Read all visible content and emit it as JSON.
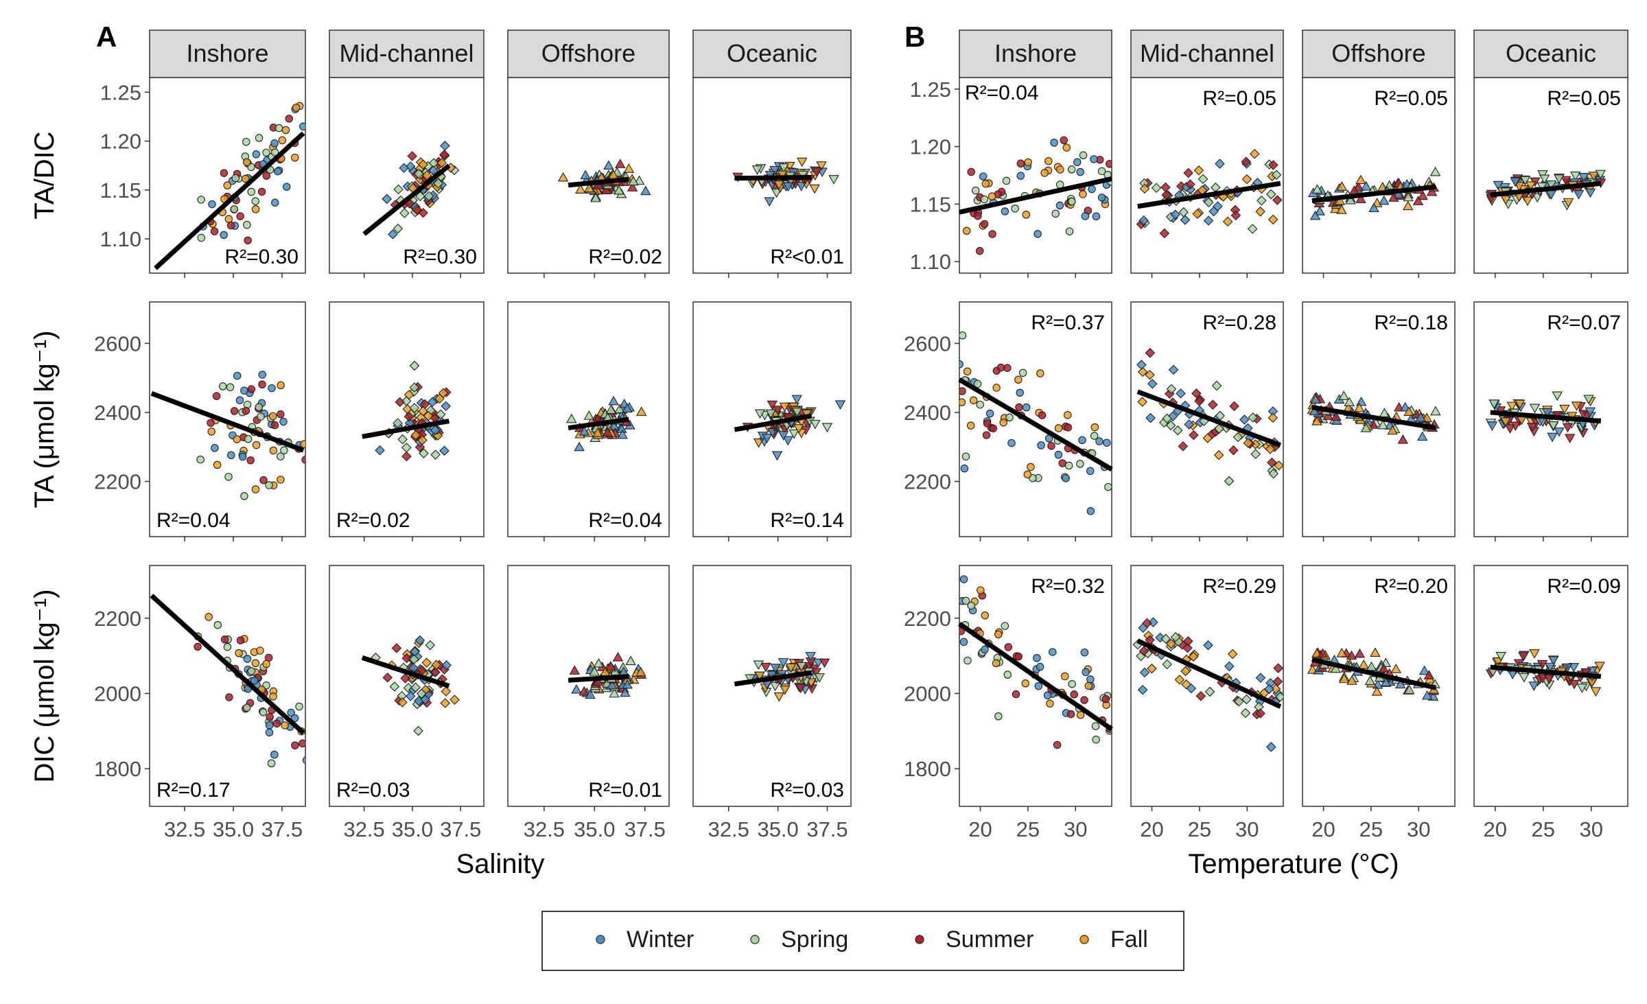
{
  "figure": {
    "panel_labels": [
      "A",
      "B"
    ],
    "legend": {
      "items": [
        {
          "label": "Winter",
          "color": "#4a90c8"
        },
        {
          "label": "Spring",
          "color": "#a9d6a4"
        },
        {
          "label": "Summer",
          "color": "#b3202a"
        },
        {
          "label": "Fall",
          "color": "#f0a020"
        }
      ]
    },
    "shapes_by_region": {
      "Inshore": "circle",
      "Mid-channel": "diamond",
      "Offshore": "triangle-up",
      "Oceanic": "triangle-down"
    }
  },
  "chart_data": [
    {
      "type": "scatter",
      "panel": "A",
      "xlabel": "Salinity",
      "facet_columns": [
        "Inshore",
        "Mid-channel",
        "Offshore",
        "Oceanic"
      ],
      "x_ticks": [
        "32.5",
        "35.0",
        "37.5"
      ],
      "xlim": [
        30.7,
        38.7
      ],
      "rows": [
        {
          "ylabel": "TA/DIC",
          "y_ticks": [
            "1.10",
            "1.15",
            "1.20",
            "1.25"
          ],
          "ylim": [
            1.065,
            1.265
          ]
        },
        {
          "ylabel": "TA (μmol kg⁻¹)",
          "y_ticks": [
            "2200",
            "2400",
            "2600"
          ],
          "ylim": [
            2040,
            2720
          ]
        },
        {
          "ylabel": "DIC (μmol kg⁻¹)",
          "y_ticks": [
            "1800",
            "2000",
            "2200"
          ],
          "ylim": [
            1700,
            2340
          ]
        }
      ],
      "facets": [
        {
          "row": 0,
          "col": "Inshore",
          "r2": "R²=0.30",
          "r2_pos": "bottom-right",
          "fit": [
            [
              31,
              1.07
            ],
            [
              38.6,
              1.208
            ]
          ]
        },
        {
          "row": 0,
          "col": "Mid-channel",
          "r2": "R²=0.30",
          "r2_pos": "bottom-right",
          "fit": [
            [
              32.5,
              1.105
            ],
            [
              36.9,
              1.175
            ]
          ]
        },
        {
          "row": 0,
          "col": "Offshore",
          "r2": "R²=0.02",
          "r2_pos": "bottom-right",
          "fit": [
            [
              33.7,
              1.155
            ],
            [
              36.7,
              1.161
            ]
          ]
        },
        {
          "row": 0,
          "col": "Oceanic",
          "r2": "R²<0.01",
          "r2_pos": "bottom-right",
          "fit": [
            [
              32.8,
              1.162
            ],
            [
              36.7,
              1.163
            ]
          ]
        },
        {
          "row": 1,
          "col": "Inshore",
          "r2": "R²=0.04",
          "r2_pos": "bottom-left",
          "fit": [
            [
              30.8,
              2455
            ],
            [
              38.6,
              2290
            ]
          ]
        },
        {
          "row": 1,
          "col": "Mid-channel",
          "r2": "R²=0.02",
          "r2_pos": "bottom-left",
          "fit": [
            [
              32.4,
              2330
            ],
            [
              36.9,
              2375
            ]
          ]
        },
        {
          "row": 1,
          "col": "Offshore",
          "r2": "R²=0.04",
          "r2_pos": "bottom-right",
          "fit": [
            [
              33.7,
              2355
            ],
            [
              36.7,
              2380
            ]
          ]
        },
        {
          "row": 1,
          "col": "Oceanic",
          "r2": "R²=0.14",
          "r2_pos": "bottom-right",
          "fit": [
            [
              32.8,
              2350
            ],
            [
              36.7,
              2390
            ]
          ]
        },
        {
          "row": 2,
          "col": "Inshore",
          "r2": "R²=0.17",
          "r2_pos": "bottom-left",
          "fit": [
            [
              30.8,
              2260
            ],
            [
              38.6,
              1895
            ]
          ]
        },
        {
          "row": 2,
          "col": "Mid-channel",
          "r2": "R²=0.03",
          "r2_pos": "bottom-left",
          "fit": [
            [
              32.4,
              2095
            ],
            [
              36.9,
              2020
            ]
          ]
        },
        {
          "row": 2,
          "col": "Offshore",
          "r2": "R²=0.01",
          "r2_pos": "bottom-right",
          "fit": [
            [
              33.7,
              2035
            ],
            [
              36.7,
              2045
            ]
          ]
        },
        {
          "row": 2,
          "col": "Oceanic",
          "r2": "R²=0.03",
          "r2_pos": "bottom-right",
          "fit": [
            [
              32.8,
              2025
            ],
            [
              36.7,
              2055
            ]
          ]
        }
      ]
    },
    {
      "type": "scatter",
      "panel": "B",
      "xlabel": "Temperature (°C)",
      "facet_columns": [
        "Inshore",
        "Mid-channel",
        "Offshore",
        "Oceanic"
      ],
      "x_ticks": [
        "20",
        "25",
        "30"
      ],
      "xlim": [
        17.8,
        33.8
      ],
      "rows": [
        {
          "ylabel": "TA/DIC",
          "y_ticks": [
            "1.10",
            "1.15",
            "1.20",
            "1.25"
          ],
          "ylim": [
            1.09,
            1.26
          ]
        },
        {
          "ylabel": "TA (μmol kg⁻¹)",
          "y_ticks": [
            "2200",
            "2400",
            "2600"
          ],
          "ylim": [
            2040,
            2720
          ]
        },
        {
          "ylabel": "DIC (μmol kg⁻¹)",
          "y_ticks": [
            "1800",
            "2000",
            "2200"
          ],
          "ylim": [
            1700,
            2340
          ]
        }
      ],
      "facets": [
        {
          "row": 0,
          "col": "Inshore",
          "r2": "R²=0.04",
          "r2_pos": "top-left",
          "fit": [
            [
              17.8,
              1.143
            ],
            [
              33.8,
              1.172
            ]
          ]
        },
        {
          "row": 0,
          "col": "Mid-channel",
          "r2": "R²=0.05",
          "r2_pos": "top-right",
          "fit": [
            [
              18.5,
              1.148
            ],
            [
              33.5,
              1.168
            ]
          ]
        },
        {
          "row": 0,
          "col": "Offshore",
          "r2": "R²=0.05",
          "r2_pos": "top-right",
          "fit": [
            [
              18.8,
              1.153
            ],
            [
              31.8,
              1.165
            ]
          ]
        },
        {
          "row": 0,
          "col": "Oceanic",
          "r2": "R²=0.05",
          "r2_pos": "top-right",
          "fit": [
            [
              19.5,
              1.158
            ],
            [
              31.0,
              1.168
            ]
          ]
        },
        {
          "row": 1,
          "col": "Inshore",
          "r2": "R²=0.37",
          "r2_pos": "top-right",
          "fit": [
            [
              17.8,
              2495
            ],
            [
              33.8,
              2235
            ]
          ]
        },
        {
          "row": 1,
          "col": "Mid-channel",
          "r2": "R²=0.28",
          "r2_pos": "top-right",
          "fit": [
            [
              18.5,
              2460
            ],
            [
              33.5,
              2305
            ]
          ]
        },
        {
          "row": 1,
          "col": "Offshore",
          "r2": "R²=0.18",
          "r2_pos": "top-right",
          "fit": [
            [
              18.8,
              2415
            ],
            [
              31.8,
              2355
            ]
          ]
        },
        {
          "row": 1,
          "col": "Oceanic",
          "r2": "R²=0.07",
          "r2_pos": "top-right",
          "fit": [
            [
              19.5,
              2400
            ],
            [
              31.0,
              2375
            ]
          ]
        },
        {
          "row": 2,
          "col": "Inshore",
          "r2": "R²=0.32",
          "r2_pos": "top-right",
          "fit": [
            [
              17.8,
              2185
            ],
            [
              33.8,
              1905
            ]
          ]
        },
        {
          "row": 2,
          "col": "Mid-channel",
          "r2": "R²=0.29",
          "r2_pos": "top-right",
          "fit": [
            [
              18.5,
              2140
            ],
            [
              33.5,
              1965
            ]
          ]
        },
        {
          "row": 2,
          "col": "Offshore",
          "r2": "R²=0.20",
          "r2_pos": "top-right",
          "fit": [
            [
              18.8,
              2090
            ],
            [
              31.8,
              2015
            ]
          ]
        },
        {
          "row": 2,
          "col": "Oceanic",
          "r2": "R²=0.09",
          "r2_pos": "top-right",
          "fit": [
            [
              19.5,
              2070
            ],
            [
              31.0,
              2045
            ]
          ]
        }
      ]
    }
  ]
}
